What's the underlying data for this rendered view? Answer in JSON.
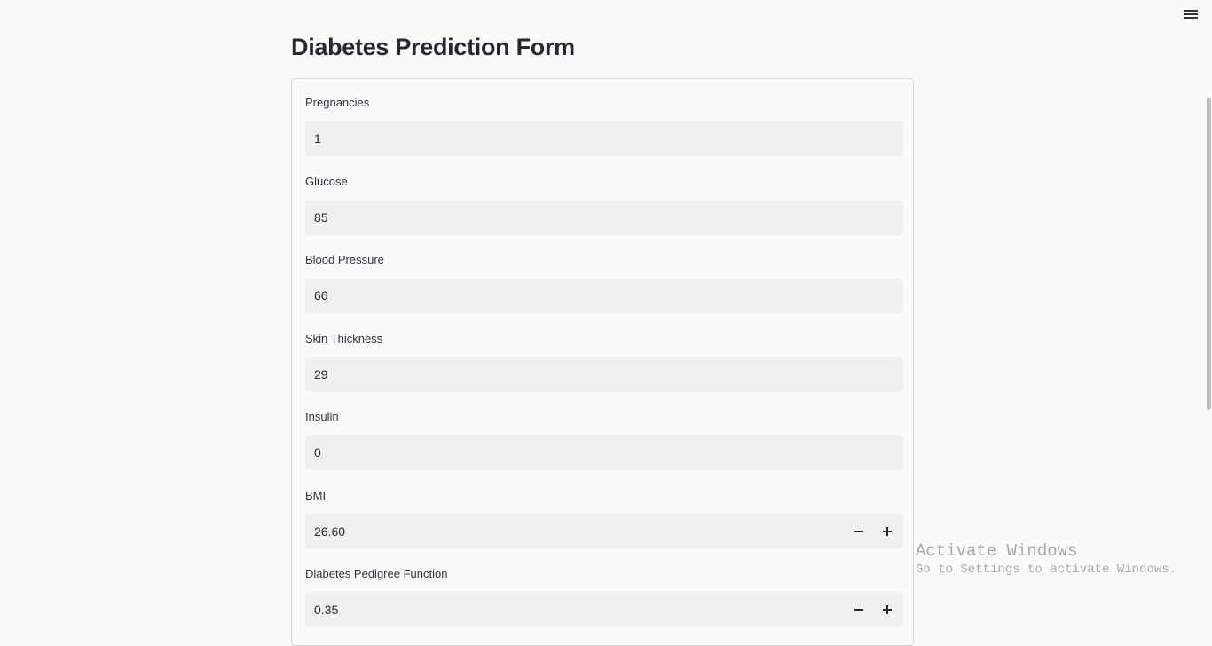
{
  "header": {
    "title": "Diabetes Prediction Form"
  },
  "form": {
    "fields": [
      {
        "label": "Pregnancies",
        "value": "1",
        "stepper": false
      },
      {
        "label": "Glucose",
        "value": "85",
        "stepper": false
      },
      {
        "label": "Blood Pressure",
        "value": "66",
        "stepper": false
      },
      {
        "label": "Skin Thickness",
        "value": "29",
        "stepper": false
      },
      {
        "label": "Insulin",
        "value": "0",
        "stepper": false
      },
      {
        "label": "BMI",
        "value": "26.60",
        "stepper": true
      },
      {
        "label": "Diabetes Pedigree Function",
        "value": "0.35",
        "stepper": true
      }
    ]
  },
  "watermark": {
    "title": "Activate Windows",
    "subtitle": "Go to Settings to activate Windows."
  }
}
